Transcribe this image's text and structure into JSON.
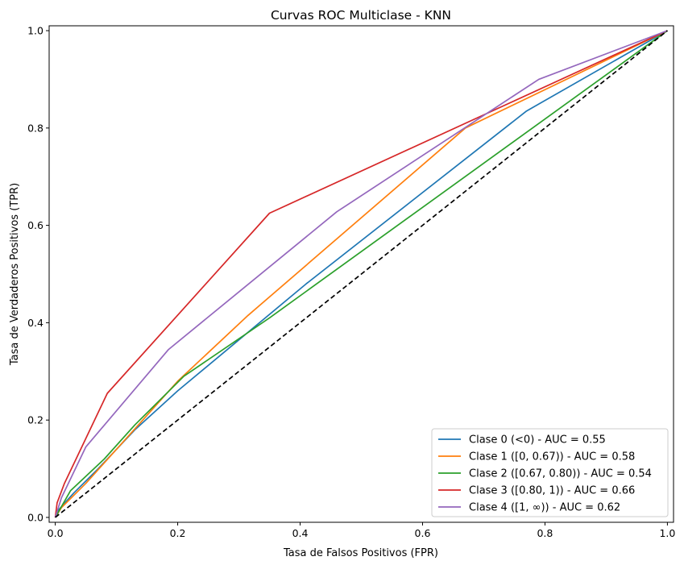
{
  "chart_data": {
    "type": "line",
    "title": "Curvas ROC Multiclase - KNN",
    "xlabel": "Tasa de Falsos Positivos (FPR)",
    "ylabel": "Tasa de Verdaderos Positivos (TPR)",
    "xlim": [
      -0.01,
      1.01
    ],
    "ylim": [
      -0.01,
      1.01
    ],
    "x_ticks": [
      "0.0",
      "0.2",
      "0.4",
      "0.6",
      "0.8",
      "1.0"
    ],
    "y_ticks": [
      "0.0",
      "0.2",
      "0.4",
      "0.6",
      "0.8",
      "1.0"
    ],
    "grid": false,
    "legend_position": "lower-right",
    "reference_line": {
      "x": [
        0,
        1
      ],
      "y": [
        0,
        1
      ],
      "color": "#000000",
      "style": "dashed"
    },
    "series": [
      {
        "name": "Clase 0 (<0) - AUC = 0.55",
        "color": "#1f77b4",
        "x": [
          0,
          0.005,
          0.03,
          0.07,
          0.13,
          0.2,
          0.41,
          0.77,
          1.0
        ],
        "y": [
          0,
          0.015,
          0.05,
          0.1,
          0.18,
          0.26,
          0.48,
          0.835,
          1.0
        ]
      },
      {
        "name": "Clase 1 ([0, 0.67)) - AUC = 0.58",
        "color": "#ff7f0e",
        "x": [
          0,
          0.01,
          0.05,
          0.1,
          0.2,
          0.315,
          0.67,
          1.0
        ],
        "y": [
          0,
          0.02,
          0.07,
          0.14,
          0.28,
          0.415,
          0.8,
          1.0
        ]
      },
      {
        "name": "Clase 2 ([0.67, 0.80)) - AUC = 0.54",
        "color": "#2ca02c",
        "x": [
          0,
          0.025,
          0.08,
          0.13,
          0.21,
          0.35,
          1.0
        ],
        "y": [
          0,
          0.055,
          0.12,
          0.19,
          0.29,
          0.41,
          1.0
        ]
      },
      {
        "name": "Clase 3 ([0.80, 1)) - AUC = 0.66",
        "color": "#d62728",
        "x": [
          0,
          0.003,
          0.015,
          0.085,
          0.35,
          1.0
        ],
        "y": [
          0,
          0.03,
          0.07,
          0.255,
          0.625,
          1.0
        ]
      },
      {
        "name": "Clase 4 ([1, ∞)) - AUC = 0.62",
        "color": "#9467bd",
        "x": [
          0,
          0.01,
          0.05,
          0.185,
          0.46,
          0.79,
          1.0
        ],
        "y": [
          0,
          0.04,
          0.145,
          0.345,
          0.628,
          0.9,
          1.0
        ]
      }
    ]
  }
}
